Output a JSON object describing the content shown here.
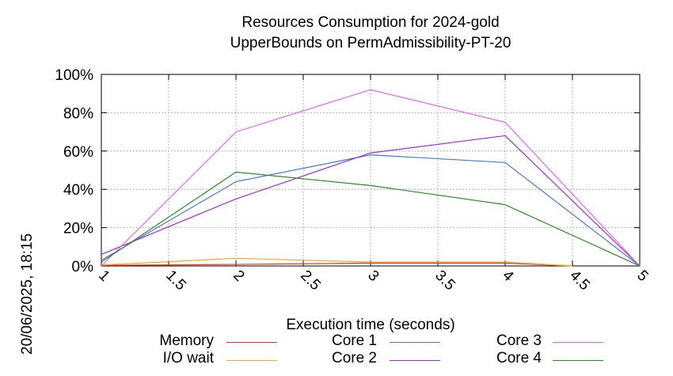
{
  "title_line1": "Resources Consumption for 2024-gold",
  "title_line2": "UpperBounds on PermAdmissibility-PT-20",
  "side_stamp": "20/06/2025, 18:15",
  "chart_data": {
    "type": "line",
    "xlabel": "Execution time (seconds)",
    "ylabel": "",
    "xlim": [
      1,
      5
    ],
    "ylim": [
      0,
      100
    ],
    "x_ticks": [
      "1",
      "1.5",
      "2",
      "2.5",
      "3",
      "3.5",
      "4",
      "4.5",
      "5"
    ],
    "y_ticks": [
      "0%",
      "20%",
      "40%",
      "60%",
      "80%",
      "100%"
    ],
    "grid": true,
    "legend_position": "bottom",
    "series": [
      {
        "name": "Memory",
        "color": "#e8351c",
        "x": [
          1,
          2,
          3,
          4,
          4.5
        ],
        "y": [
          0.3,
          0.8,
          1.5,
          1.5,
          0
        ]
      },
      {
        "name": "I/O wait",
        "color": "#f3a62a",
        "x": [
          1,
          2,
          3,
          4,
          4.5
        ],
        "y": [
          0.5,
          4,
          2,
          2,
          0
        ]
      },
      {
        "name": "Core 1",
        "color": "#4a78d6",
        "x": [
          1,
          2,
          3,
          4,
          5
        ],
        "y": [
          3,
          44,
          58,
          54,
          0
        ]
      },
      {
        "name": "Core 2",
        "color": "#9a30e0",
        "x": [
          1,
          2,
          3,
          4,
          5
        ],
        "y": [
          6,
          35,
          59,
          68,
          0
        ]
      },
      {
        "name": "Core 3",
        "color": "#f060f0",
        "x": [
          1,
          2,
          3,
          4,
          5
        ],
        "y": [
          0,
          70,
          92,
          75,
          0
        ]
      },
      {
        "name": "Core 4",
        "color": "#2a8a2a",
        "x": [
          1,
          2,
          3,
          4,
          5
        ],
        "y": [
          2,
          49,
          42,
          32,
          0
        ]
      }
    ]
  }
}
